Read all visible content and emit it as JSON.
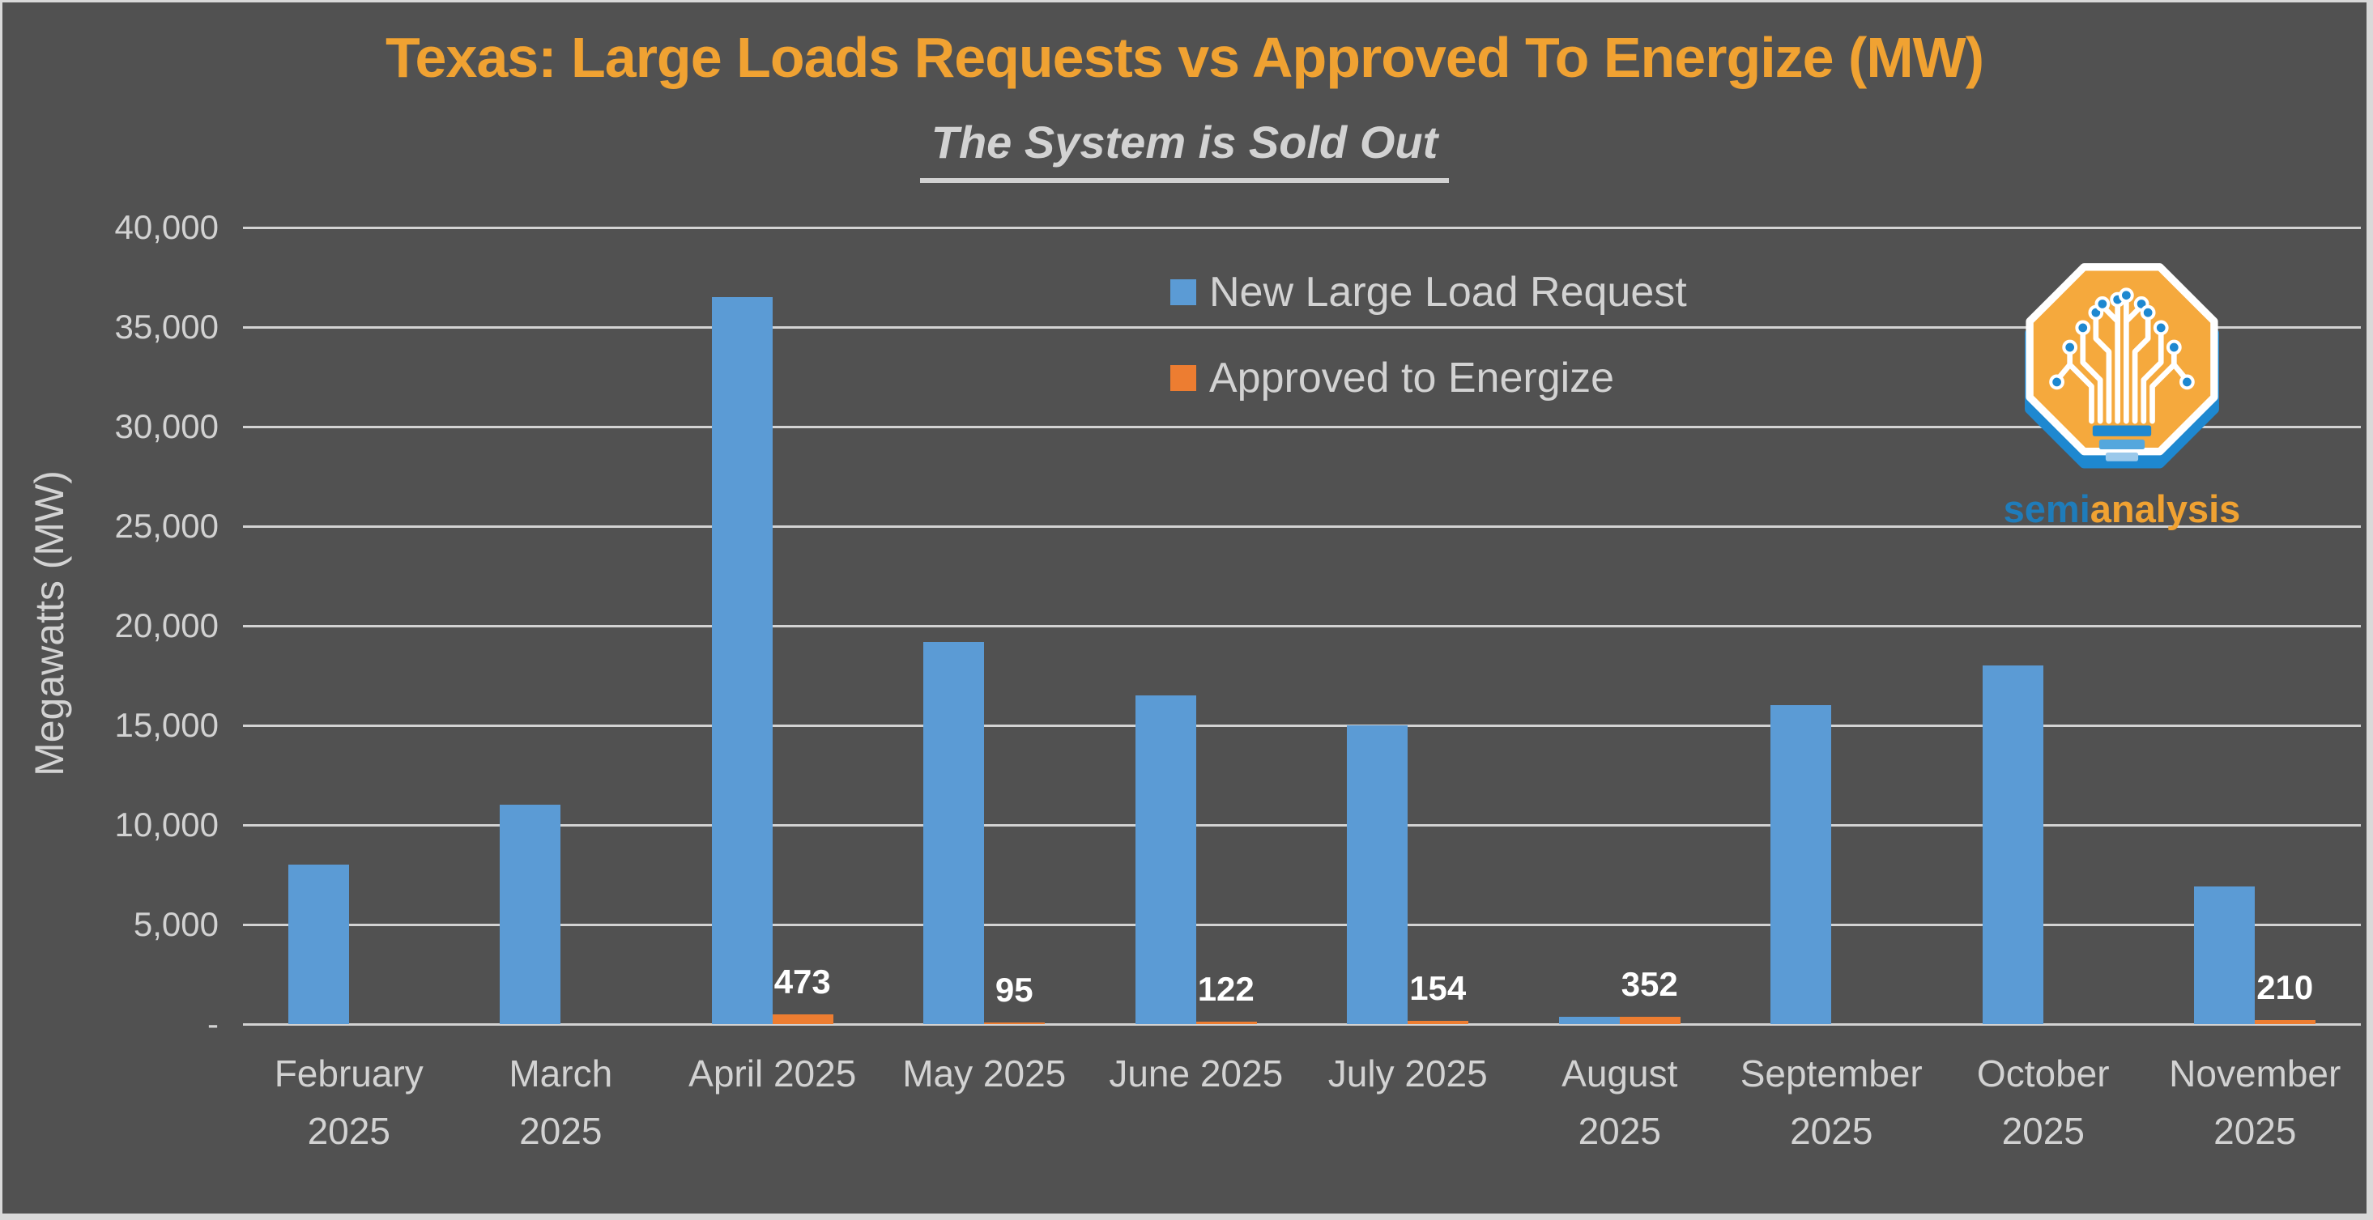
{
  "window": {
    "background": "#515151",
    "frame_color": "#D9D9D9"
  },
  "header": {
    "title": "Texas: Large Loads Requests vs Approved To Energize (MW)",
    "subtitle": "The System is Sold Out"
  },
  "colors": {
    "request_blue": "#5B9BD5",
    "approved_orange": "#ED7D31",
    "title_orange": "#F0A232",
    "axis_text": "#D2D2D2",
    "gridline": "#D3D3D3",
    "data_label": "#FFFFFF"
  },
  "legend": {
    "items": [
      {
        "label": "New Large Load Request",
        "color": "#5B9BD5"
      },
      {
        "label": "Approved to Energize",
        "color": "#ED7D31"
      }
    ]
  },
  "y_axis": {
    "title": "Megawatts (MW)",
    "tick_labels_top_to_bottom": [
      "40,000",
      "35,000",
      "30,000",
      "25,000",
      "20,000",
      "15,000",
      "10,000",
      "5,000",
      "-"
    ]
  },
  "logo": {
    "wordmark_semi": "semi",
    "wordmark_analysis": "analysis"
  },
  "chart_data": {
    "type": "bar",
    "title": "Texas: Large Loads Requests vs Approved To Energize (MW)",
    "subtitle": "The System is Sold Out",
    "xlabel": "",
    "ylabel": "Megawatts (MW)",
    "ylim": [
      0,
      40000
    ],
    "ytick_step": 5000,
    "grid": true,
    "legend_position": "top-center-inside",
    "categories": [
      "February 2025",
      "March 2025",
      "April 2025",
      "May 2025",
      "June 2025",
      "July 2025",
      "August 2025",
      "September 2025",
      "October 2025",
      "November 2025"
    ],
    "series": [
      {
        "name": "New Large Load Request",
        "color": "#5B9BD5",
        "values": [
          8000,
          11000,
          36500,
          19200,
          16500,
          15000,
          360,
          16000,
          18000,
          6900
        ]
      },
      {
        "name": "Approved to Energize",
        "color": "#ED7D31",
        "values": [
          0,
          0,
          473,
          95,
          122,
          154,
          352,
          0,
          0,
          210
        ],
        "data_labels": [
          null,
          null,
          "473",
          "95",
          "122",
          "154",
          "352",
          null,
          null,
          "210"
        ]
      }
    ]
  }
}
